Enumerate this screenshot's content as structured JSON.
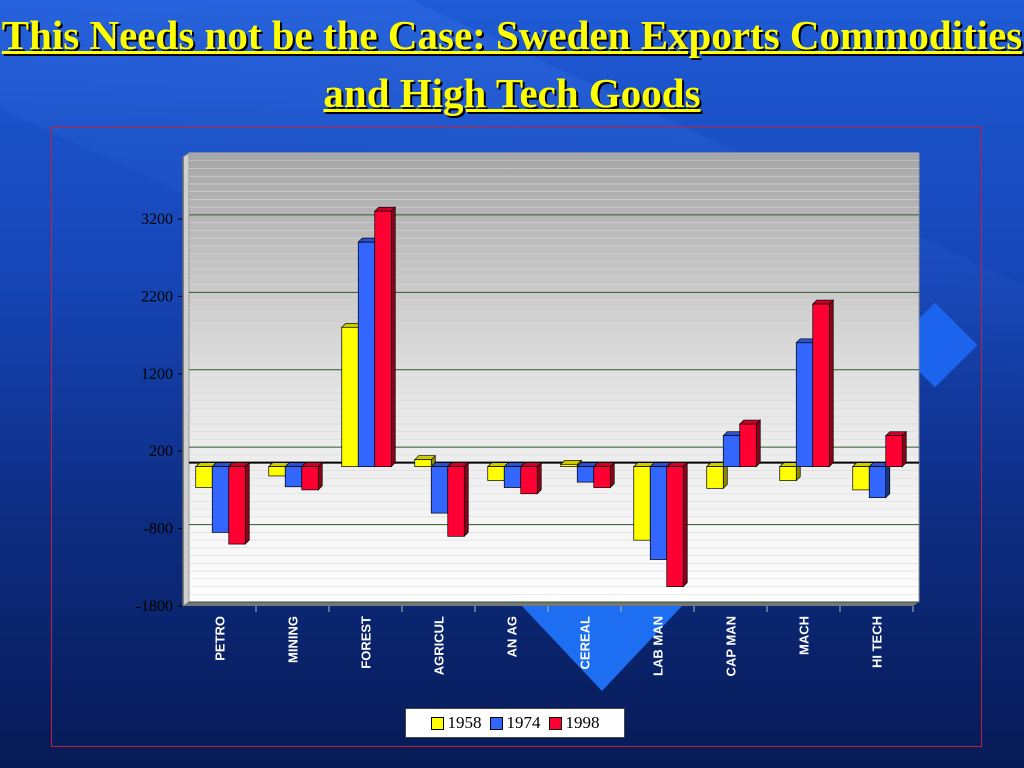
{
  "slide": {
    "title": "This Needs not be the Case: Sweden Exports Commodities and High Tech Goods"
  },
  "colors": {
    "series_1958": "#ffff00",
    "series_1974": "#3366ff",
    "series_1998": "#ff0033",
    "title": "#ffff00"
  },
  "chart_data": {
    "type": "bar",
    "categories": [
      "PETRO",
      "MINING",
      "FOREST",
      "AGRICUL",
      "AN AG",
      "CEREAL",
      "LAB MAN",
      "CAP MAN",
      "MACH",
      "HI TECH"
    ],
    "series": [
      {
        "name": "1958",
        "values": [
          -270,
          -120,
          1800,
          90,
          -180,
          30,
          -950,
          -280,
          -180,
          -300
        ]
      },
      {
        "name": "1974",
        "values": [
          -850,
          -260,
          2900,
          -600,
          -270,
          -200,
          -1200,
          400,
          1600,
          -400
        ]
      },
      {
        "name": "1998",
        "values": [
          -1000,
          -300,
          3300,
          -900,
          -350,
          -270,
          -1550,
          550,
          2100,
          400
        ]
      }
    ],
    "yticks": [
      3200,
      2200,
      1200,
      200,
      -800,
      -1800
    ],
    "ylim": [
      -1800,
      4000
    ],
    "grid": true,
    "legend": "bottom"
  }
}
